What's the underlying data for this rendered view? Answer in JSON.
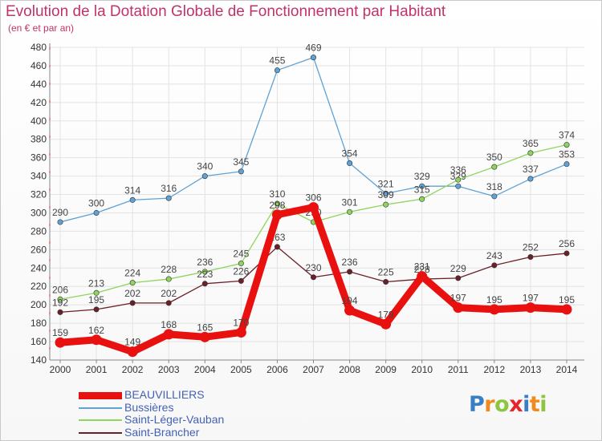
{
  "chart_data": {
    "type": "line",
    "title": "Evolution de la Dotation Globale de Fonctionnement par Habitant",
    "subtitle": "(en € et par an)",
    "xlabel": "",
    "ylabel": "",
    "x": [
      "2000",
      "2001",
      "2002",
      "2003",
      "2004",
      "2005",
      "2006",
      "2007",
      "2008",
      "2009",
      "2010",
      "2011",
      "2012",
      "2013",
      "2014"
    ],
    "ylim": [
      140,
      480
    ],
    "yticks": [
      140,
      160,
      180,
      200,
      220,
      240,
      260,
      280,
      300,
      320,
      340,
      360,
      380,
      400,
      420,
      440,
      460,
      480
    ],
    "grid": true,
    "legend_position": "bottom-left",
    "series": [
      {
        "name": "BEAUVILLIERS",
        "color": "#e8110f",
        "values": [
          159,
          162,
          149,
          168,
          165,
          170,
          298,
          306,
          194,
          179,
          231,
          197,
          195,
          197,
          195
        ]
      },
      {
        "name": "Bussières",
        "color": "#5ea2d6",
        "values": [
          290,
          300,
          314,
          316,
          340,
          345,
          455,
          469,
          354,
          321,
          329,
          329,
          318,
          337,
          353
        ]
      },
      {
        "name": "Saint-Léger-Vauban",
        "color": "#8fd45e",
        "values": [
          206,
          213,
          224,
          228,
          236,
          245,
          310,
          290,
          301,
          309,
          315,
          336,
          350,
          365,
          374
        ]
      },
      {
        "name": "Saint-Brancher",
        "color": "#6b2027",
        "values": [
          192,
          195,
          202,
          202,
          223,
          226,
          263,
          230,
          236,
          225,
          228,
          229,
          243,
          252,
          256
        ]
      }
    ]
  },
  "logo": {
    "text": "Proxiti",
    "colors": [
      "#3a7fc4",
      "#f08a1c",
      "#8cc63f",
      "#e4262c",
      "#3a7fc4",
      "#f08a1c",
      "#8cc63f"
    ]
  }
}
